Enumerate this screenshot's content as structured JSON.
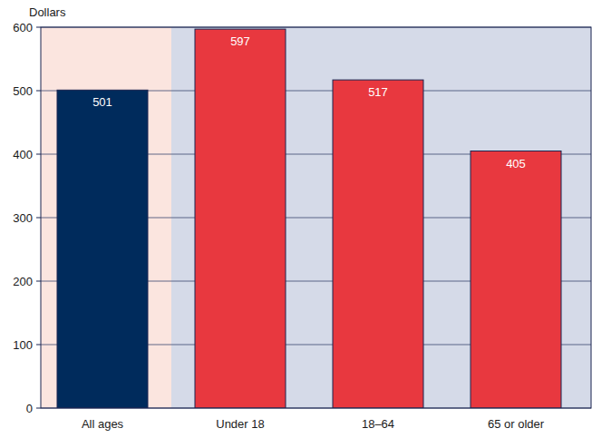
{
  "chart_data": {
    "type": "bar",
    "y_label": "Dollars",
    "categories": [
      "All ages",
      "Under 18",
      "18–64",
      "65 or older"
    ],
    "values": [
      501,
      597,
      517,
      405
    ],
    "colors": [
      "#002b5c",
      "#e8383f",
      "#e8383f",
      "#e8383f"
    ],
    "ylim": [
      0,
      600
    ],
    "yticks": [
      0,
      100,
      200,
      300,
      400,
      500,
      600
    ],
    "grid": true,
    "data_labels": true
  }
}
